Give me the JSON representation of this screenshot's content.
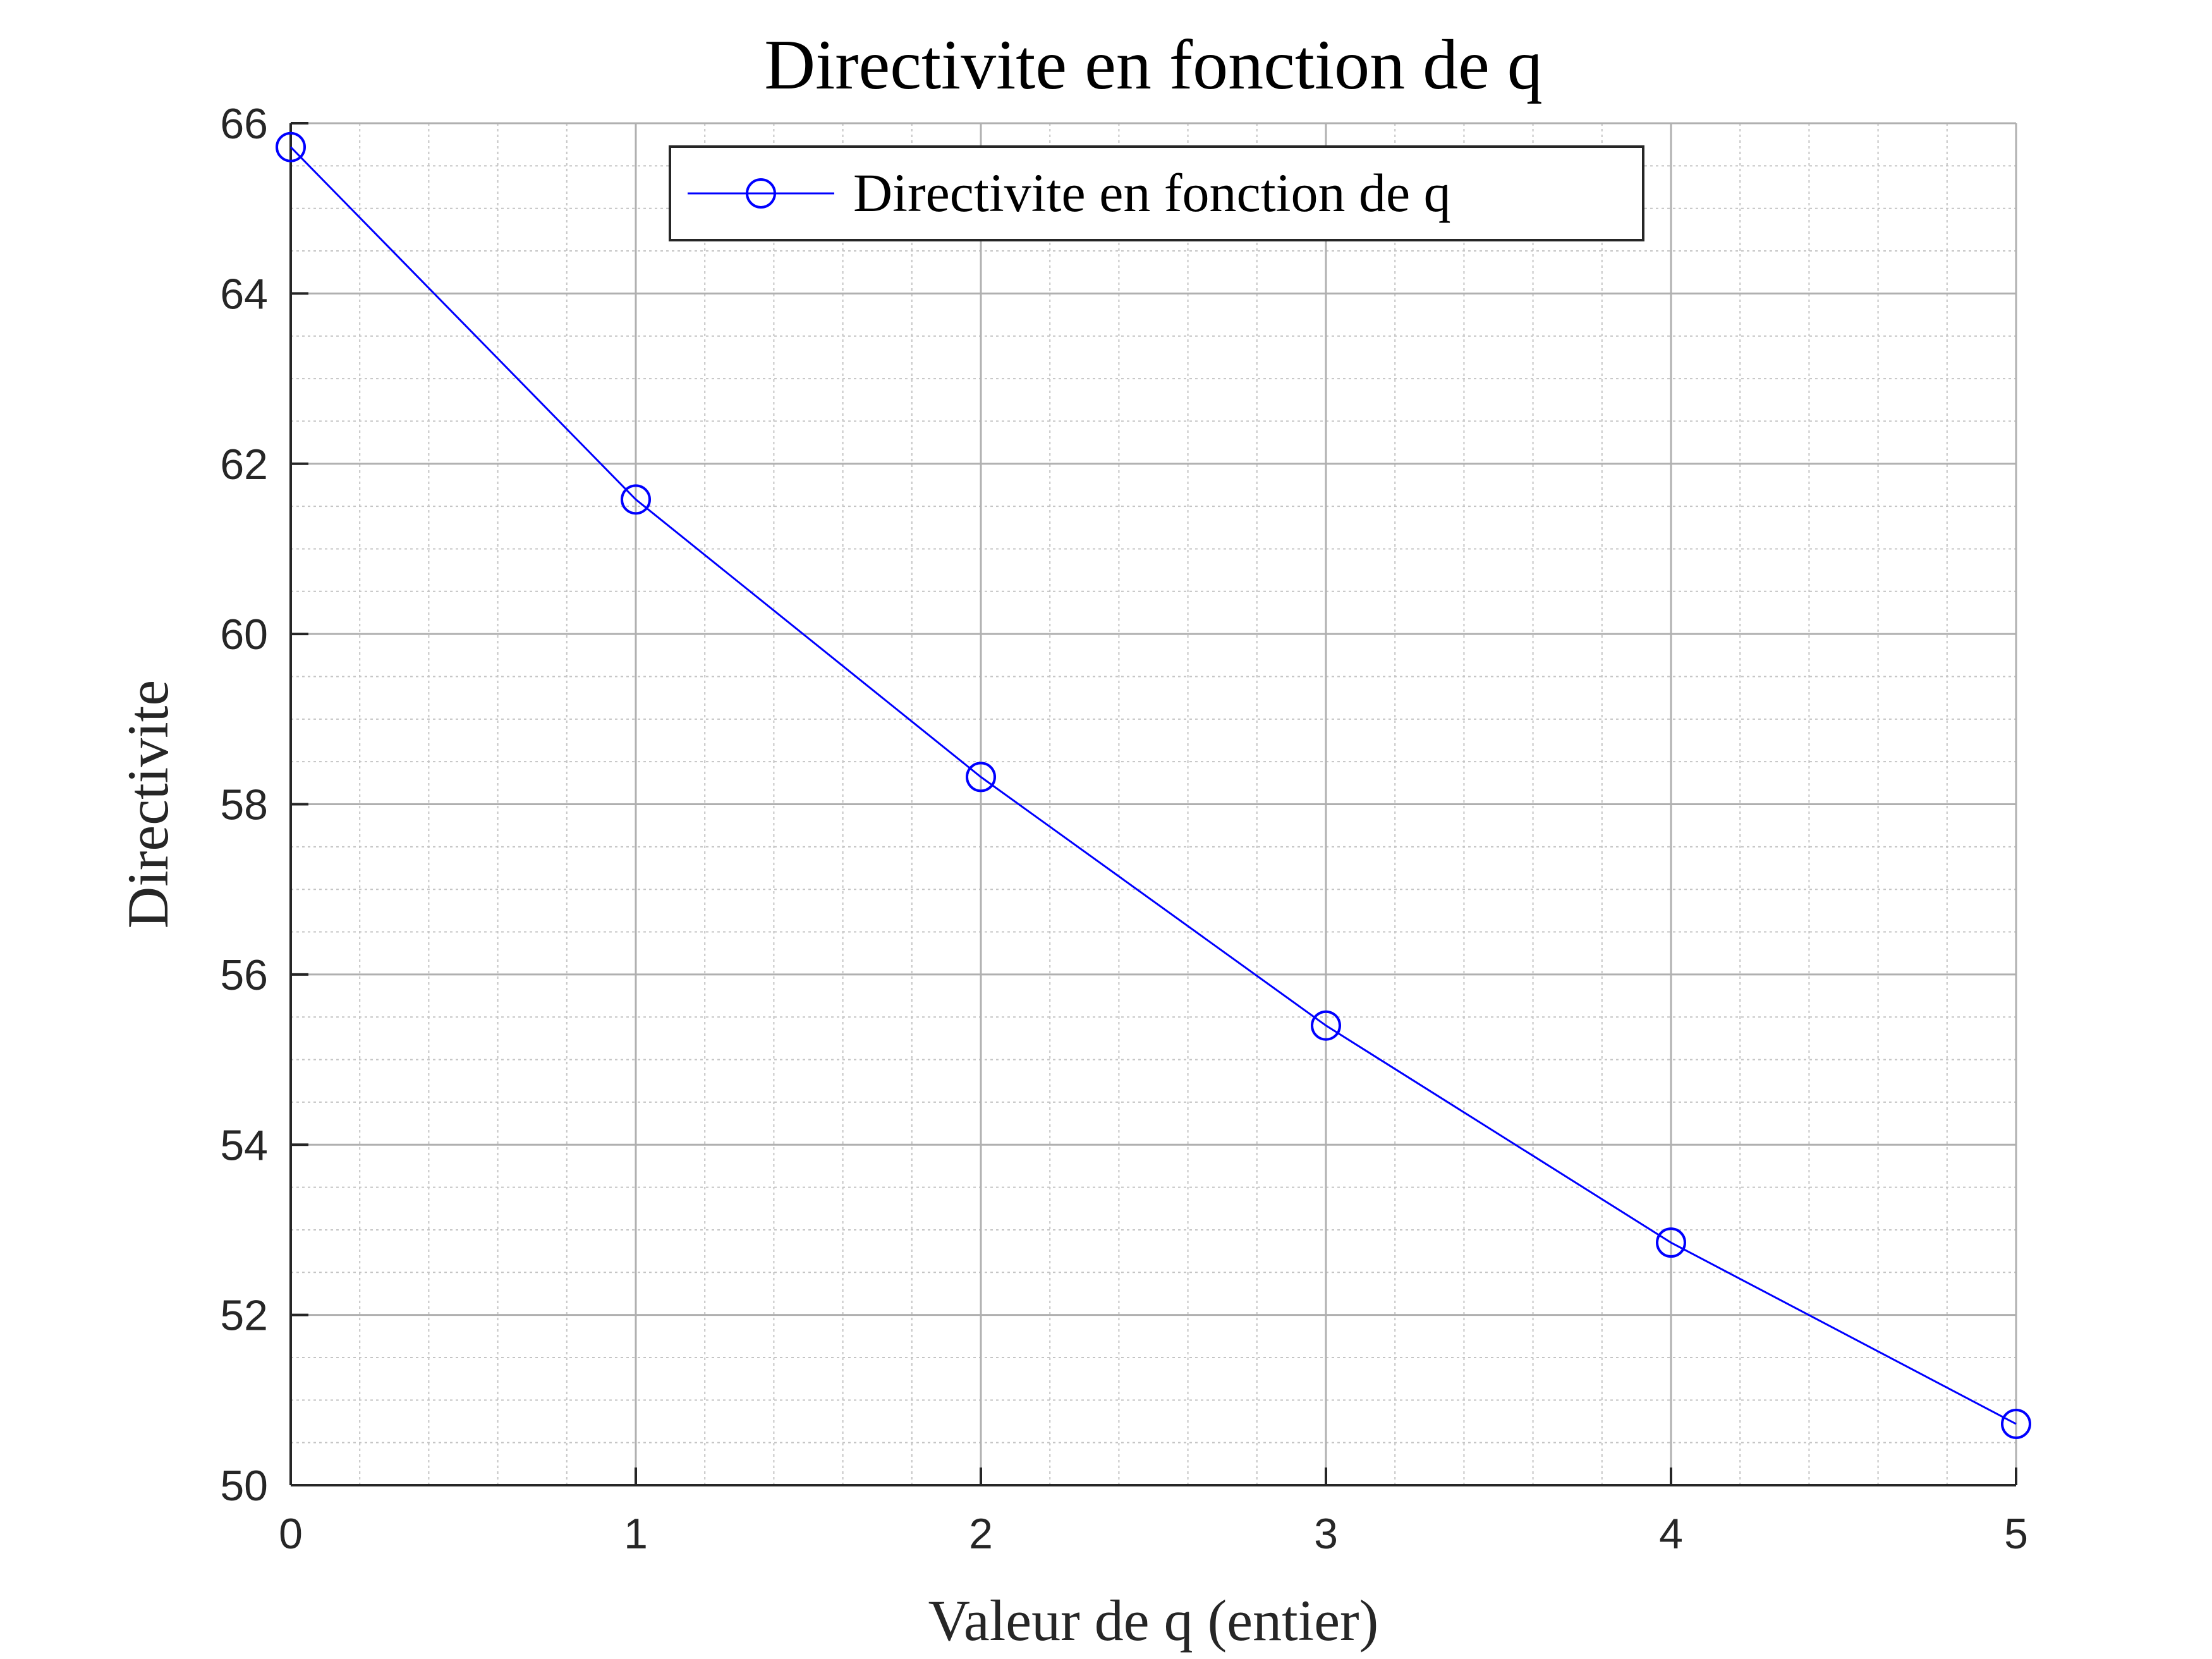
{
  "chart_data": {
    "type": "line",
    "title": "Directivite en fonction de q",
    "xlabel": "Valeur de q (entier)",
    "ylabel": "Directivite",
    "xlim": [
      0,
      5
    ],
    "ylim": [
      50,
      66
    ],
    "xticks": [
      "0",
      "1",
      "2",
      "3",
      "4",
      "5"
    ],
    "yticks": [
      "50",
      "52",
      "54",
      "56",
      "58",
      "60",
      "62",
      "64",
      "66"
    ],
    "grid": true,
    "minor_grid": true,
    "legend_position": "top-center",
    "series": [
      {
        "name": "Directivite en fonction de q",
        "color": "#0000ff",
        "marker": "circle",
        "x": [
          0,
          1,
          2,
          3,
          4,
          5
        ],
        "y": [
          65.72,
          61.58,
          58.32,
          55.4,
          52.85,
          50.72
        ]
      }
    ]
  }
}
